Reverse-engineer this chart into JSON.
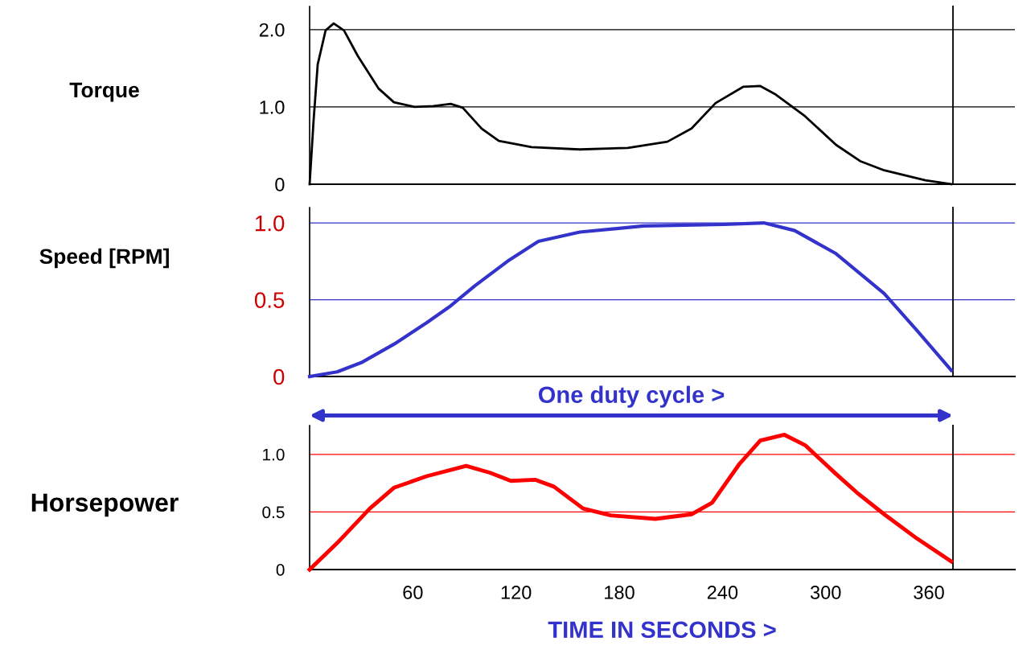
{
  "chart_data": [
    {
      "type": "line",
      "ylabel": "Torque",
      "xlim": [
        0,
        410
      ],
      "xticks": [
        60,
        120,
        180,
        240,
        300,
        360
      ],
      "ylim": [
        0,
        2.3
      ],
      "yticks": [
        {
          "value": 0,
          "label": "0"
        },
        {
          "value": 1,
          "label": "1.0"
        },
        {
          "value": 2,
          "label": "2.0"
        }
      ],
      "tick_labels": "y",
      "grid": "y",
      "legend": false,
      "x": [
        0,
        2.3,
        4.7,
        9.3,
        14,
        20,
        28,
        40,
        49,
        61,
        72,
        82,
        89,
        100,
        110,
        129,
        157,
        185,
        208,
        222,
        236,
        252,
        262,
        271,
        288,
        306,
        320,
        334,
        358,
        373
      ],
      "series": [
        {
          "color": "#000000",
          "values": [
            0,
            0.82,
            1.55,
            1.99,
            2.08,
            1.99,
            1.66,
            1.24,
            1.06,
            1.0,
            1.01,
            1.04,
            0.99,
            0.72,
            0.56,
            0.48,
            0.45,
            0.47,
            0.55,
            0.72,
            1.05,
            1.26,
            1.27,
            1.16,
            0.88,
            0.51,
            0.3,
            0.18,
            0.05,
            0
          ]
        }
      ],
      "ref_lines": [
        {
          "axis": "x",
          "value": 374,
          "color": "#000000"
        }
      ]
    },
    {
      "type": "line",
      "ylabel": "Speed [RPM]",
      "xlim": [
        0,
        410
      ],
      "xticks": [
        60,
        120,
        180,
        240,
        300,
        360
      ],
      "ylim": [
        0,
        1.1
      ],
      "yticks": [
        {
          "value": 0,
          "label": "0"
        },
        {
          "value": 0.5,
          "label": "0.5"
        },
        {
          "value": 1,
          "label": "1.0"
        }
      ],
      "tick_labels": "y",
      "grid": "y",
      "legend": false,
      "x": [
        0,
        16,
        30,
        49,
        68,
        82,
        96,
        115,
        133,
        157,
        194,
        241,
        264,
        282,
        306,
        334,
        353,
        373
      ],
      "series": [
        {
          "color": "#3333cc",
          "values": [
            0,
            0.03,
            0.09,
            0.21,
            0.35,
            0.46,
            0.59,
            0.75,
            0.88,
            0.94,
            0.98,
            0.99,
            1.0,
            0.95,
            0.8,
            0.54,
            0.3,
            0.04
          ]
        }
      ],
      "ref_lines": [
        {
          "axis": "x",
          "value": 374,
          "color": "#000000"
        }
      ]
    },
    {
      "type": "line",
      "ylabel": "Horsepower",
      "xlabel": "TIME IN SECONDS >",
      "xlim": [
        0,
        410
      ],
      "xticks": [
        60,
        120,
        180,
        240,
        300,
        360
      ],
      "ylim": [
        0,
        1.25
      ],
      "yticks": [
        {
          "value": 0,
          "label": "0"
        },
        {
          "value": 0.5,
          "label": "0.5"
        },
        {
          "value": 1,
          "label": "1.0"
        }
      ],
      "grid": "y",
      "legend": false,
      "x": [
        0,
        16,
        35,
        49,
        68,
        91,
        105,
        117,
        131,
        142,
        159,
        175,
        201,
        222,
        234,
        250,
        262,
        276,
        288,
        306,
        318,
        334,
        353,
        373
      ],
      "series": [
        {
          "color": "#ff0000",
          "values": [
            0,
            0.23,
            0.53,
            0.71,
            0.81,
            0.9,
            0.84,
            0.77,
            0.78,
            0.72,
            0.53,
            0.47,
            0.44,
            0.48,
            0.58,
            0.92,
            1.12,
            1.17,
            1.08,
            0.83,
            0.67,
            0.48,
            0.27,
            0.07
          ]
        }
      ],
      "ref_lines": [
        {
          "axis": "x",
          "value": 374,
          "color": "#000000"
        }
      ],
      "annotations": [
        "One duty cycle >"
      ]
    }
  ]
}
